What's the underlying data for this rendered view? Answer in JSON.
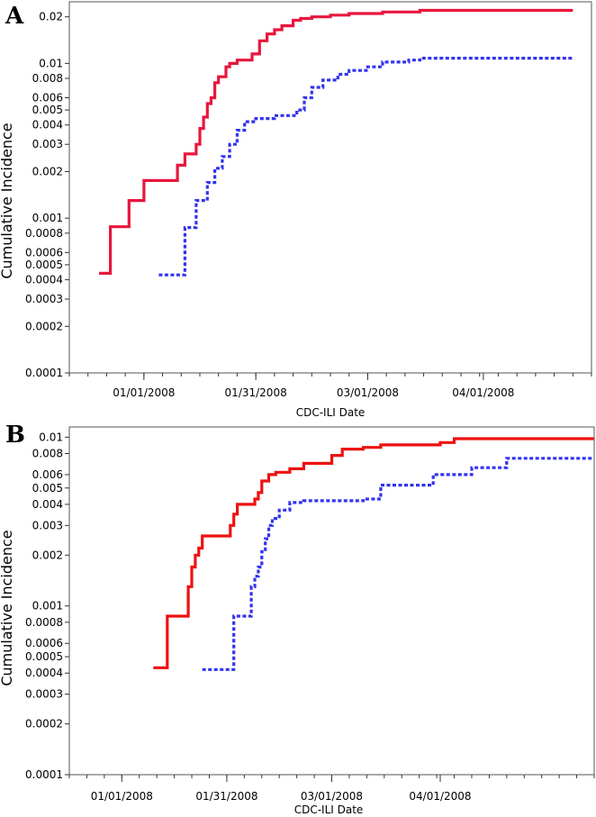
{
  "chart_data": [
    {
      "panel": "A",
      "type": "line",
      "xlabel": "CDC-ILI Date",
      "ylabel": "Cumulative Incidence",
      "yscale": "log",
      "ylim": [
        0.0001,
        0.025
      ],
      "xlim": [
        "2007-12-12",
        "2008-04-30"
      ],
      "x_tick_labels": [
        "01/01/2008",
        "01/31/2008",
        "03/01/2008",
        "04/01/2008"
      ],
      "x_tick_dates": [
        "2008-01-01",
        "2008-01-31",
        "2008-03-01",
        "2008-04-01"
      ],
      "y_tick_labels": [
        "0.0001",
        "0.0002",
        "0.0003",
        "0.0004",
        "0.0005",
        "0.0006",
        "0.0008",
        "0.001",
        "0.002",
        "0.003",
        "0.004",
        "0.005",
        "0.006",
        "0.008",
        "0.01",
        "0.02"
      ],
      "y_tick_values": [
        0.0001,
        0.0002,
        0.0003,
        0.0004,
        0.0005,
        0.0006,
        0.0008,
        0.001,
        0.002,
        0.003,
        0.004,
        0.005,
        0.006,
        0.008,
        0.01,
        0.02
      ],
      "series": [
        {
          "color": "#e8163c",
          "style": "solid",
          "x": [
            "2007-12-20",
            "2007-12-23",
            "2007-12-28",
            "2008-01-01",
            "2008-01-10",
            "2008-01-12",
            "2008-01-15",
            "2008-01-16",
            "2008-01-17",
            "2008-01-18",
            "2008-01-19",
            "2008-01-20",
            "2008-01-21",
            "2008-01-23",
            "2008-01-24",
            "2008-01-26",
            "2008-01-30",
            "2008-02-01",
            "2008-02-03",
            "2008-02-05",
            "2008-02-07",
            "2008-02-10",
            "2008-02-12",
            "2008-02-15",
            "2008-02-20",
            "2008-02-25",
            "2008-03-05",
            "2008-03-15",
            "2008-04-25"
          ],
          "y": [
            0.00044,
            0.00088,
            0.0013,
            0.00175,
            0.0022,
            0.0026,
            0.003,
            0.0038,
            0.0045,
            0.0055,
            0.006,
            0.0075,
            0.0082,
            0.0095,
            0.01,
            0.0105,
            0.0115,
            0.014,
            0.0155,
            0.0165,
            0.0175,
            0.019,
            0.0195,
            0.02,
            0.0205,
            0.021,
            0.0215,
            0.022,
            0.022
          ]
        },
        {
          "color": "#3333ee",
          "style": "dotted",
          "x": [
            "2008-01-05",
            "2008-01-12",
            "2008-01-15",
            "2008-01-18",
            "2008-01-20",
            "2008-01-22",
            "2008-01-24",
            "2008-01-26",
            "2008-01-28",
            "2008-01-31",
            "2008-02-05",
            "2008-02-11",
            "2008-02-13",
            "2008-02-15",
            "2008-02-18",
            "2008-02-22",
            "2008-02-25",
            "2008-03-01",
            "2008-03-05",
            "2008-03-12",
            "2008-03-15",
            "2008-04-25"
          ],
          "y": [
            0.00043,
            0.00087,
            0.0013,
            0.0017,
            0.0021,
            0.0025,
            0.003,
            0.0037,
            0.0042,
            0.0044,
            0.0046,
            0.005,
            0.006,
            0.007,
            0.0078,
            0.0085,
            0.009,
            0.0095,
            0.0102,
            0.0105,
            0.0108,
            0.0108
          ]
        }
      ]
    },
    {
      "panel": "B",
      "type": "line",
      "xlabel": "CDC-ILI Date",
      "ylabel": "Cumulative Incidence",
      "yscale": "log",
      "ylim": [
        0.0001,
        0.0115
      ],
      "xlim": [
        "2007-12-17",
        "2008-05-15"
      ],
      "x_tick_labels": [
        "01/01/2008",
        "01/31/2008",
        "03/01/2008",
        "04/01/2008"
      ],
      "x_tick_dates": [
        "2008-01-01",
        "2008-01-31",
        "2008-03-01",
        "2008-04-01"
      ],
      "y_tick_labels": [
        "0.0001",
        "0.0002",
        "0.0003",
        "0.0004",
        "0.0005",
        "0.0006",
        "0.0008",
        "0.001",
        "0.002",
        "0.003",
        "0.004",
        "0.005",
        "0.006",
        "0.008",
        "0.01"
      ],
      "y_tick_values": [
        0.0001,
        0.0002,
        0.0003,
        0.0004,
        0.0005,
        0.0006,
        0.0008,
        0.001,
        0.002,
        0.003,
        0.004,
        0.005,
        0.006,
        0.008,
        0.01
      ],
      "series": [
        {
          "color": "#ee1111",
          "style": "solid",
          "x": [
            "2008-01-10",
            "2008-01-14",
            "2008-01-20",
            "2008-01-21",
            "2008-01-22",
            "2008-01-23",
            "2008-01-24",
            "2008-02-01",
            "2008-02-02",
            "2008-02-03",
            "2008-02-08",
            "2008-02-09",
            "2008-02-10",
            "2008-02-12",
            "2008-02-14",
            "2008-02-18",
            "2008-02-22",
            "2008-03-01",
            "2008-03-04",
            "2008-03-10",
            "2008-03-15",
            "2008-04-01",
            "2008-04-05",
            "2008-05-15"
          ],
          "y": [
            0.00043,
            0.00087,
            0.0013,
            0.0017,
            0.002,
            0.0022,
            0.0026,
            0.003,
            0.0035,
            0.004,
            0.0043,
            0.0047,
            0.0055,
            0.006,
            0.0062,
            0.0065,
            0.007,
            0.0078,
            0.0085,
            0.0087,
            0.009,
            0.0093,
            0.0098,
            0.0098
          ]
        },
        {
          "color": "#3333ee",
          "style": "dotted",
          "x": [
            "2008-01-24",
            "2008-02-02",
            "2008-02-07",
            "2008-02-08",
            "2008-02-09",
            "2008-02-10",
            "2008-02-11",
            "2008-02-12",
            "2008-02-13",
            "2008-02-15",
            "2008-02-18",
            "2008-02-22",
            "2008-03-10",
            "2008-03-15",
            "2008-03-30",
            "2008-04-10",
            "2008-04-20",
            "2008-05-15"
          ],
          "y": [
            0.00042,
            0.00087,
            0.0013,
            0.0015,
            0.0017,
            0.0021,
            0.0025,
            0.003,
            0.0033,
            0.0037,
            0.0041,
            0.0042,
            0.0043,
            0.0052,
            0.006,
            0.0066,
            0.0075,
            0.0075
          ]
        }
      ]
    }
  ]
}
